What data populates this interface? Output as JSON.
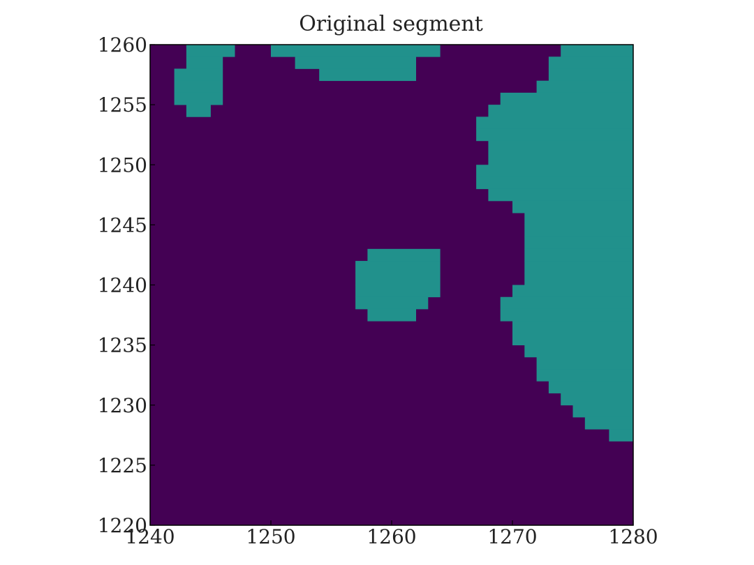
{
  "chart_data": {
    "type": "heatmap",
    "title": "Original segment",
    "xlabel": "",
    "ylabel": "",
    "xlim": [
      1240,
      1280
    ],
    "ylim": [
      1220,
      1260
    ],
    "x_ticks": [
      1240,
      1250,
      1260,
      1270,
      1280
    ],
    "y_ticks": [
      1220,
      1225,
      1230,
      1235,
      1240,
      1245,
      1250,
      1255,
      1260
    ],
    "colormap": "viridis",
    "background_value": 0,
    "segment_value": 1,
    "colors": {
      "background": "#440154",
      "segment": "#21918c"
    },
    "grid": false,
    "segment_rows": [
      {
        "y": 1259,
        "x_runs": [
          [
            1243,
            1247
          ],
          [
            1250,
            1264
          ],
          [
            1274,
            1280
          ]
        ]
      },
      {
        "y": 1258,
        "x_runs": [
          [
            1243,
            1246
          ],
          [
            1252,
            1262
          ],
          [
            1273,
            1280
          ]
        ]
      },
      {
        "y": 1257,
        "x_runs": [
          [
            1242,
            1246
          ],
          [
            1254,
            1262
          ],
          [
            1273,
            1280
          ]
        ]
      },
      {
        "y": 1256,
        "x_runs": [
          [
            1242,
            1246
          ],
          [
            1272,
            1280
          ]
        ]
      },
      {
        "y": 1255,
        "x_runs": [
          [
            1242,
            1246
          ],
          [
            1269,
            1280
          ]
        ]
      },
      {
        "y": 1254,
        "x_runs": [
          [
            1243,
            1245
          ],
          [
            1268,
            1280
          ]
        ]
      },
      {
        "y": 1253,
        "x_runs": [
          [
            1267,
            1280
          ]
        ]
      },
      {
        "y": 1252,
        "x_runs": [
          [
            1267,
            1280
          ]
        ]
      },
      {
        "y": 1251,
        "x_runs": [
          [
            1268,
            1280
          ]
        ]
      },
      {
        "y": 1250,
        "x_runs": [
          [
            1268,
            1280
          ]
        ]
      },
      {
        "y": 1249,
        "x_runs": [
          [
            1267,
            1280
          ]
        ]
      },
      {
        "y": 1248,
        "x_runs": [
          [
            1267,
            1280
          ]
        ]
      },
      {
        "y": 1247,
        "x_runs": [
          [
            1268,
            1280
          ]
        ]
      },
      {
        "y": 1246,
        "x_runs": [
          [
            1270,
            1280
          ]
        ]
      },
      {
        "y": 1245,
        "x_runs": [
          [
            1271,
            1280
          ]
        ]
      },
      {
        "y": 1244,
        "x_runs": [
          [
            1271,
            1280
          ]
        ]
      },
      {
        "y": 1243,
        "x_runs": [
          [
            1271,
            1280
          ]
        ]
      },
      {
        "y": 1242,
        "x_runs": [
          [
            1258,
            1264
          ],
          [
            1271,
            1280
          ]
        ]
      },
      {
        "y": 1241,
        "x_runs": [
          [
            1257,
            1264
          ],
          [
            1271,
            1280
          ]
        ]
      },
      {
        "y": 1240,
        "x_runs": [
          [
            1257,
            1264
          ],
          [
            1271,
            1280
          ]
        ]
      },
      {
        "y": 1239,
        "x_runs": [
          [
            1257,
            1264
          ],
          [
            1270,
            1280
          ]
        ]
      },
      {
        "y": 1238,
        "x_runs": [
          [
            1257,
            1263
          ],
          [
            1269,
            1280
          ]
        ]
      },
      {
        "y": 1237,
        "x_runs": [
          [
            1258,
            1262
          ],
          [
            1269,
            1280
          ]
        ]
      },
      {
        "y": 1236,
        "x_runs": [
          [
            1270,
            1280
          ]
        ]
      },
      {
        "y": 1235,
        "x_runs": [
          [
            1270,
            1280
          ]
        ]
      },
      {
        "y": 1234,
        "x_runs": [
          [
            1271,
            1280
          ]
        ]
      },
      {
        "y": 1233,
        "x_runs": [
          [
            1272,
            1280
          ]
        ]
      },
      {
        "y": 1232,
        "x_runs": [
          [
            1272,
            1280
          ]
        ]
      },
      {
        "y": 1231,
        "x_runs": [
          [
            1273,
            1280
          ]
        ]
      },
      {
        "y": 1230,
        "x_runs": [
          [
            1274,
            1280
          ]
        ]
      },
      {
        "y": 1229,
        "x_runs": [
          [
            1275,
            1280
          ]
        ]
      },
      {
        "y": 1228,
        "x_runs": [
          [
            1276,
            1280
          ]
        ]
      },
      {
        "y": 1227,
        "x_runs": [
          [
            1278,
            1280
          ]
        ]
      }
    ]
  }
}
